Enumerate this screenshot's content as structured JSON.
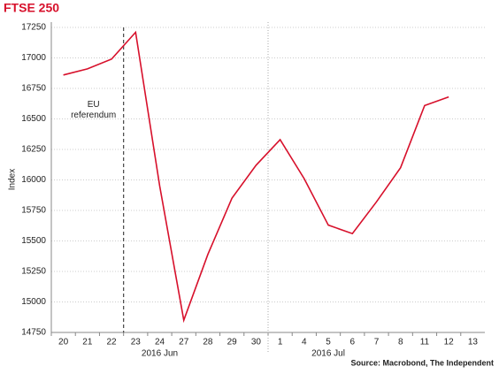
{
  "chart_data": {
    "type": "line",
    "title": "FTSE 250",
    "y_label": "Index",
    "source": "Source: Macrobond, The Independent",
    "event_label": "EU\nreferendum",
    "x_groups": [
      "2016 Jun",
      "2016 Jul"
    ],
    "categories": [
      "20",
      "21",
      "22",
      "23",
      "24",
      "27",
      "28",
      "29",
      "30",
      "1",
      "4",
      "5",
      "6",
      "7",
      "8",
      "11",
      "12",
      "13"
    ],
    "series": [
      {
        "name": "FTSE 250",
        "color": "#d7102b",
        "values": [
          16860,
          16910,
          16990,
          17210,
          15950,
          14850,
          15390,
          15850,
          16120,
          16330,
          16010,
          15630,
          15560,
          15820,
          16100,
          16610,
          16680,
          null
        ]
      }
    ],
    "ylim": [
      14750,
      17250
    ],
    "yticks": [
      14750,
      15000,
      15250,
      15500,
      15750,
      16000,
      16250,
      16500,
      16750,
      17000,
      17250
    ],
    "grid": true
  }
}
